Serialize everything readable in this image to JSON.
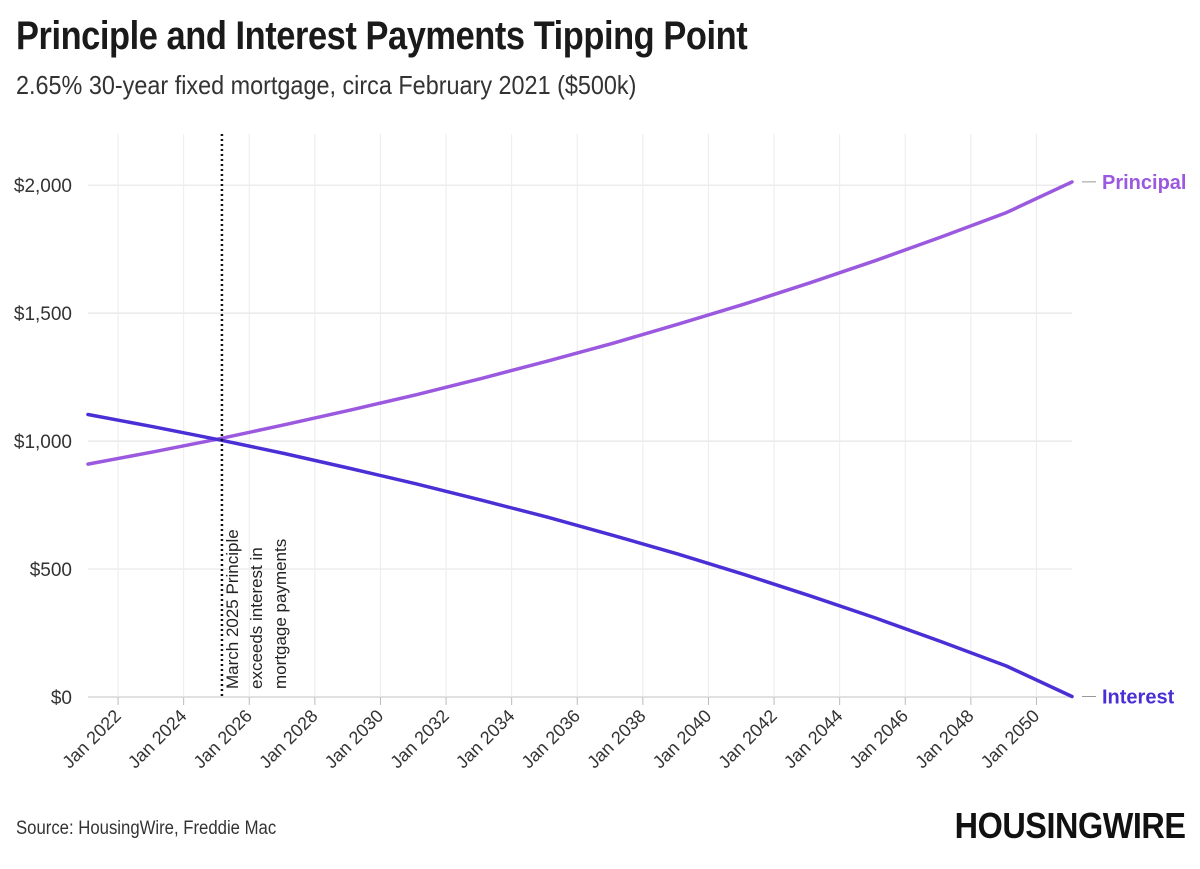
{
  "header": {
    "title": "Principle and Interest Payments Tipping Point",
    "subtitle": "2.65% 30-year fixed mortgage, circa February 2021 ($500k)"
  },
  "footer": {
    "source": "Source: HousingWire, Freddie Mac",
    "logo_text": "HOUSINGWIRE"
  },
  "chart_data": {
    "type": "line",
    "xlim": [
      "2021-02",
      "2051-02"
    ],
    "ylim": [
      0,
      2200
    ],
    "y_ticks": [
      0,
      500,
      1000,
      1500,
      2000
    ],
    "y_tick_labels": [
      "$0",
      "$500",
      "$1,000",
      "$1,500",
      "$2,000"
    ],
    "x_ticks": [
      2022,
      2024,
      2026,
      2028,
      2030,
      2032,
      2034,
      2036,
      2038,
      2040,
      2042,
      2044,
      2046,
      2048,
      2050
    ],
    "x_tick_labels": [
      "Jan 2022",
      "Jan 2024",
      "Jan 2026",
      "Jan 2028",
      "Jan 2030",
      "Jan 2032",
      "Jan 2034",
      "Jan 2036",
      "Jan 2038",
      "Jan 2040",
      "Jan 2042",
      "Jan 2044",
      "Jan 2046",
      "Jan 2048",
      "Jan 2050"
    ],
    "grid": true,
    "x": [
      "2021-02",
      "2023-02",
      "2025-02",
      "2027-02",
      "2029-02",
      "2031-02",
      "2033-02",
      "2035-02",
      "2037-02",
      "2039-02",
      "2041-02",
      "2043-02",
      "2045-02",
      "2047-02",
      "2049-02",
      "2051-02"
    ],
    "series": [
      {
        "name": "Principal",
        "color": "#9b59e0",
        "values": [
          910,
          958,
          1009,
          1064,
          1121,
          1181,
          1245,
          1312,
          1382,
          1457,
          1535,
          1618,
          1705,
          1797,
          1893,
          2013
        ]
      },
      {
        "name": "Interest",
        "color": "#4a2fd6",
        "values": [
          1104,
          1056,
          1005,
          951,
          893,
          833,
          769,
          703,
          632,
          558,
          479,
          396,
          309,
          217,
          121,
          2
        ]
      }
    ],
    "annotation": {
      "x": "2025-03",
      "text_lines": [
        "March 2025 Principle",
        "exceeds interest in",
        "mortgage payments"
      ]
    }
  }
}
